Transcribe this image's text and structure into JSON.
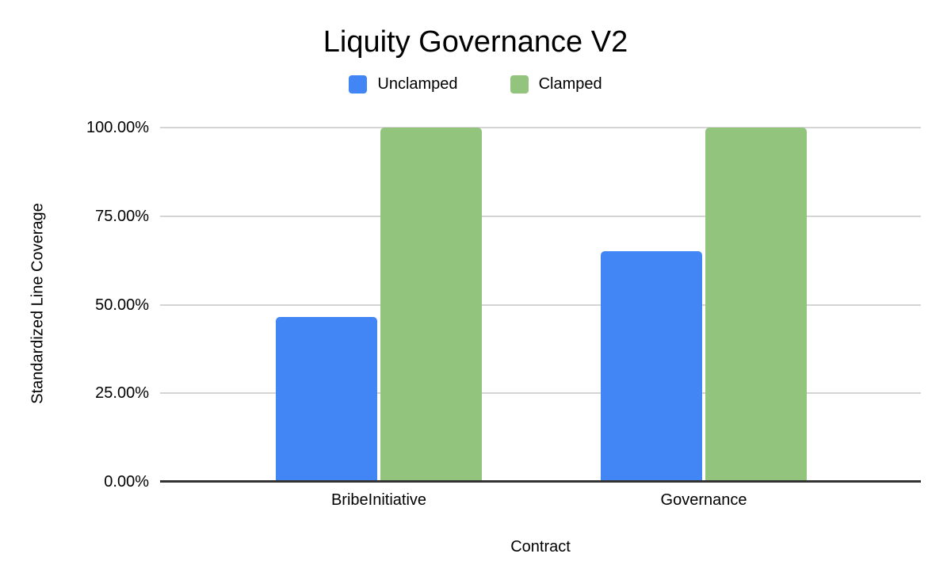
{
  "chart_data": {
    "type": "bar",
    "title": "Liquity Governance V2",
    "xlabel": "Contract",
    "ylabel": "Standardized Line Coverage",
    "categories": [
      "BribeInitiative",
      "Governance"
    ],
    "series": [
      {
        "name": "Unclamped",
        "color": "#4285F4",
        "values": [
          46.6,
          65.0
        ]
      },
      {
        "name": "Clamped",
        "color": "#93C47D",
        "values": [
          100.0,
          100.0
        ]
      }
    ],
    "ylim": [
      0,
      100
    ],
    "yticks": [
      "0.00%",
      "25.00%",
      "50.00%",
      "75.00%",
      "100.00%"
    ],
    "grid": true,
    "legend_position": "top",
    "colors": {
      "grid": "#d5d5d5",
      "axis": "#333333",
      "text": "#000000",
      "background": "#ffffff"
    }
  }
}
